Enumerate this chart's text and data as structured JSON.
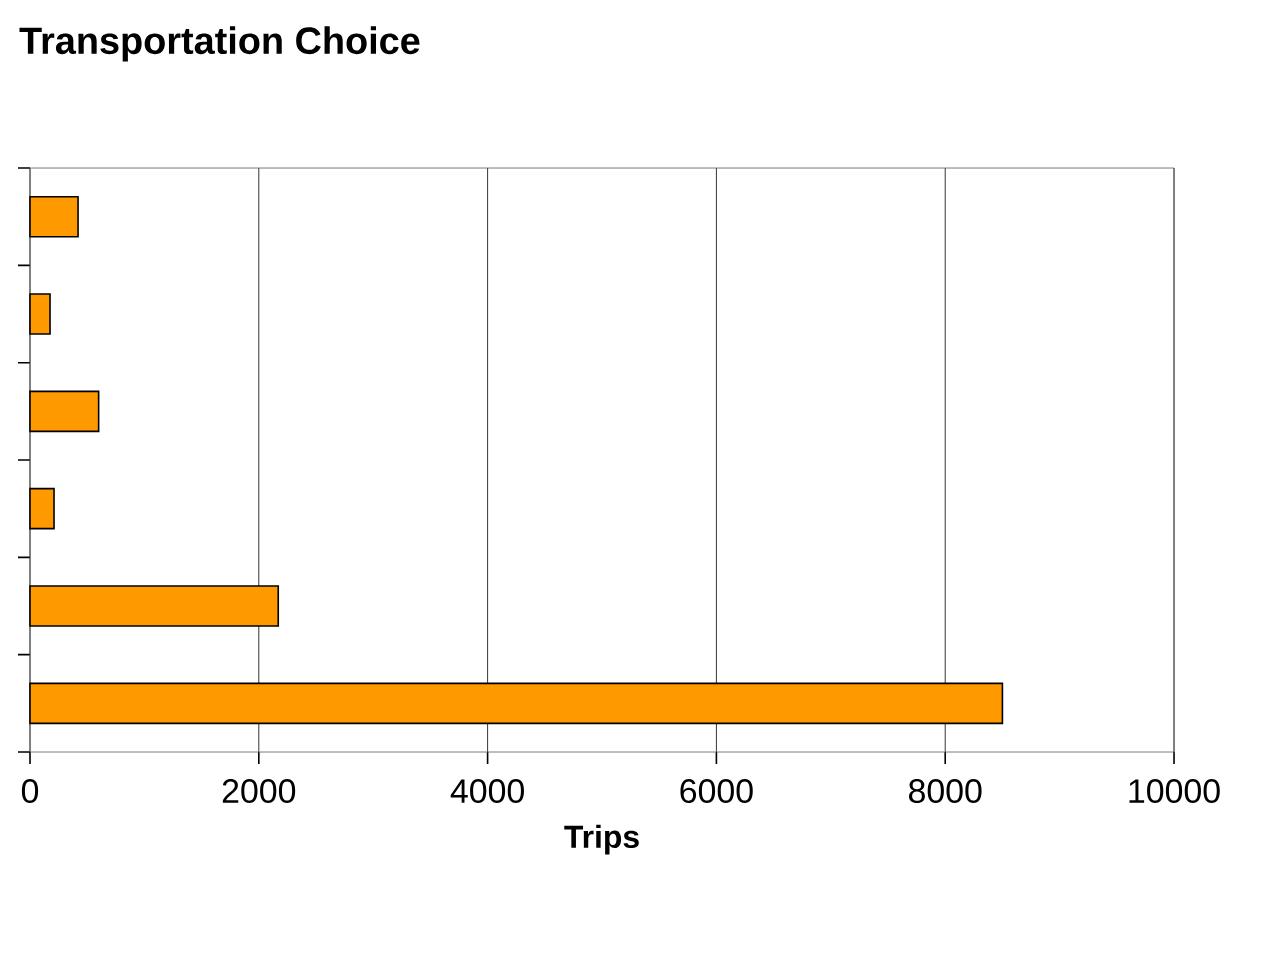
{
  "chart_data": {
    "type": "bar",
    "orientation": "horizontal",
    "title": "Transportation Choice",
    "xlabel": "Trips",
    "categories": [
      null,
      null,
      null,
      null,
      null,
      null
    ],
    "values": [
      420,
      175,
      600,
      210,
      2170,
      8500
    ],
    "color": "#ff9900",
    "xlim": [
      0,
      10000
    ],
    "xticks": [
      0,
      2000,
      4000,
      6000,
      8000,
      10000
    ],
    "grid": "x"
  }
}
